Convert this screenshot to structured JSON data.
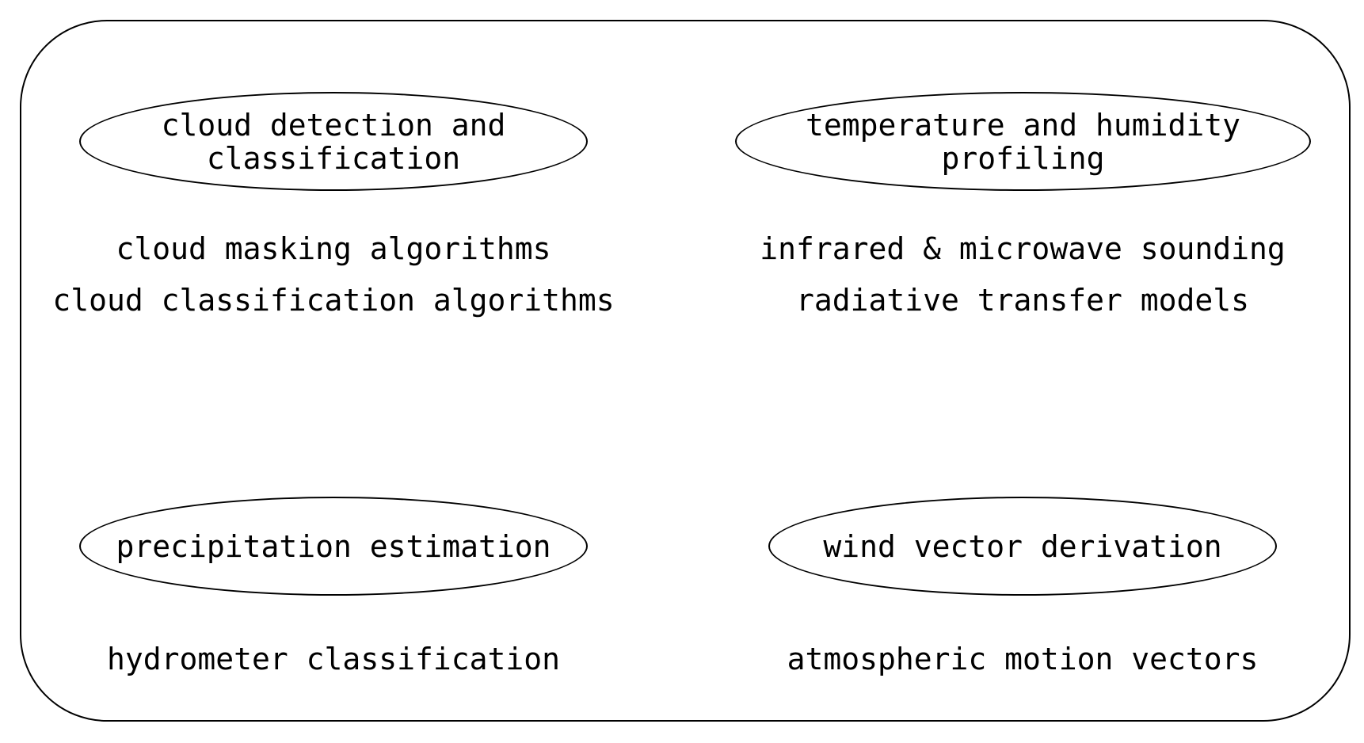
{
  "categories": [
    {
      "title_lines": [
        "cloud detection and",
        "classification"
      ],
      "items": [
        "cloud masking algorithms",
        "cloud classification algorithms"
      ]
    },
    {
      "title_lines": [
        "temperature and humidity",
        "profiling"
      ],
      "items": [
        "infrared & microwave sounding",
        "radiative transfer models"
      ]
    },
    {
      "title_lines": [
        "precipitation estimation"
      ],
      "items": [
        "hydrometer classification"
      ]
    },
    {
      "title_lines": [
        "wind vector derivation"
      ],
      "items": [
        "atmospheric motion vectors"
      ]
    }
  ]
}
